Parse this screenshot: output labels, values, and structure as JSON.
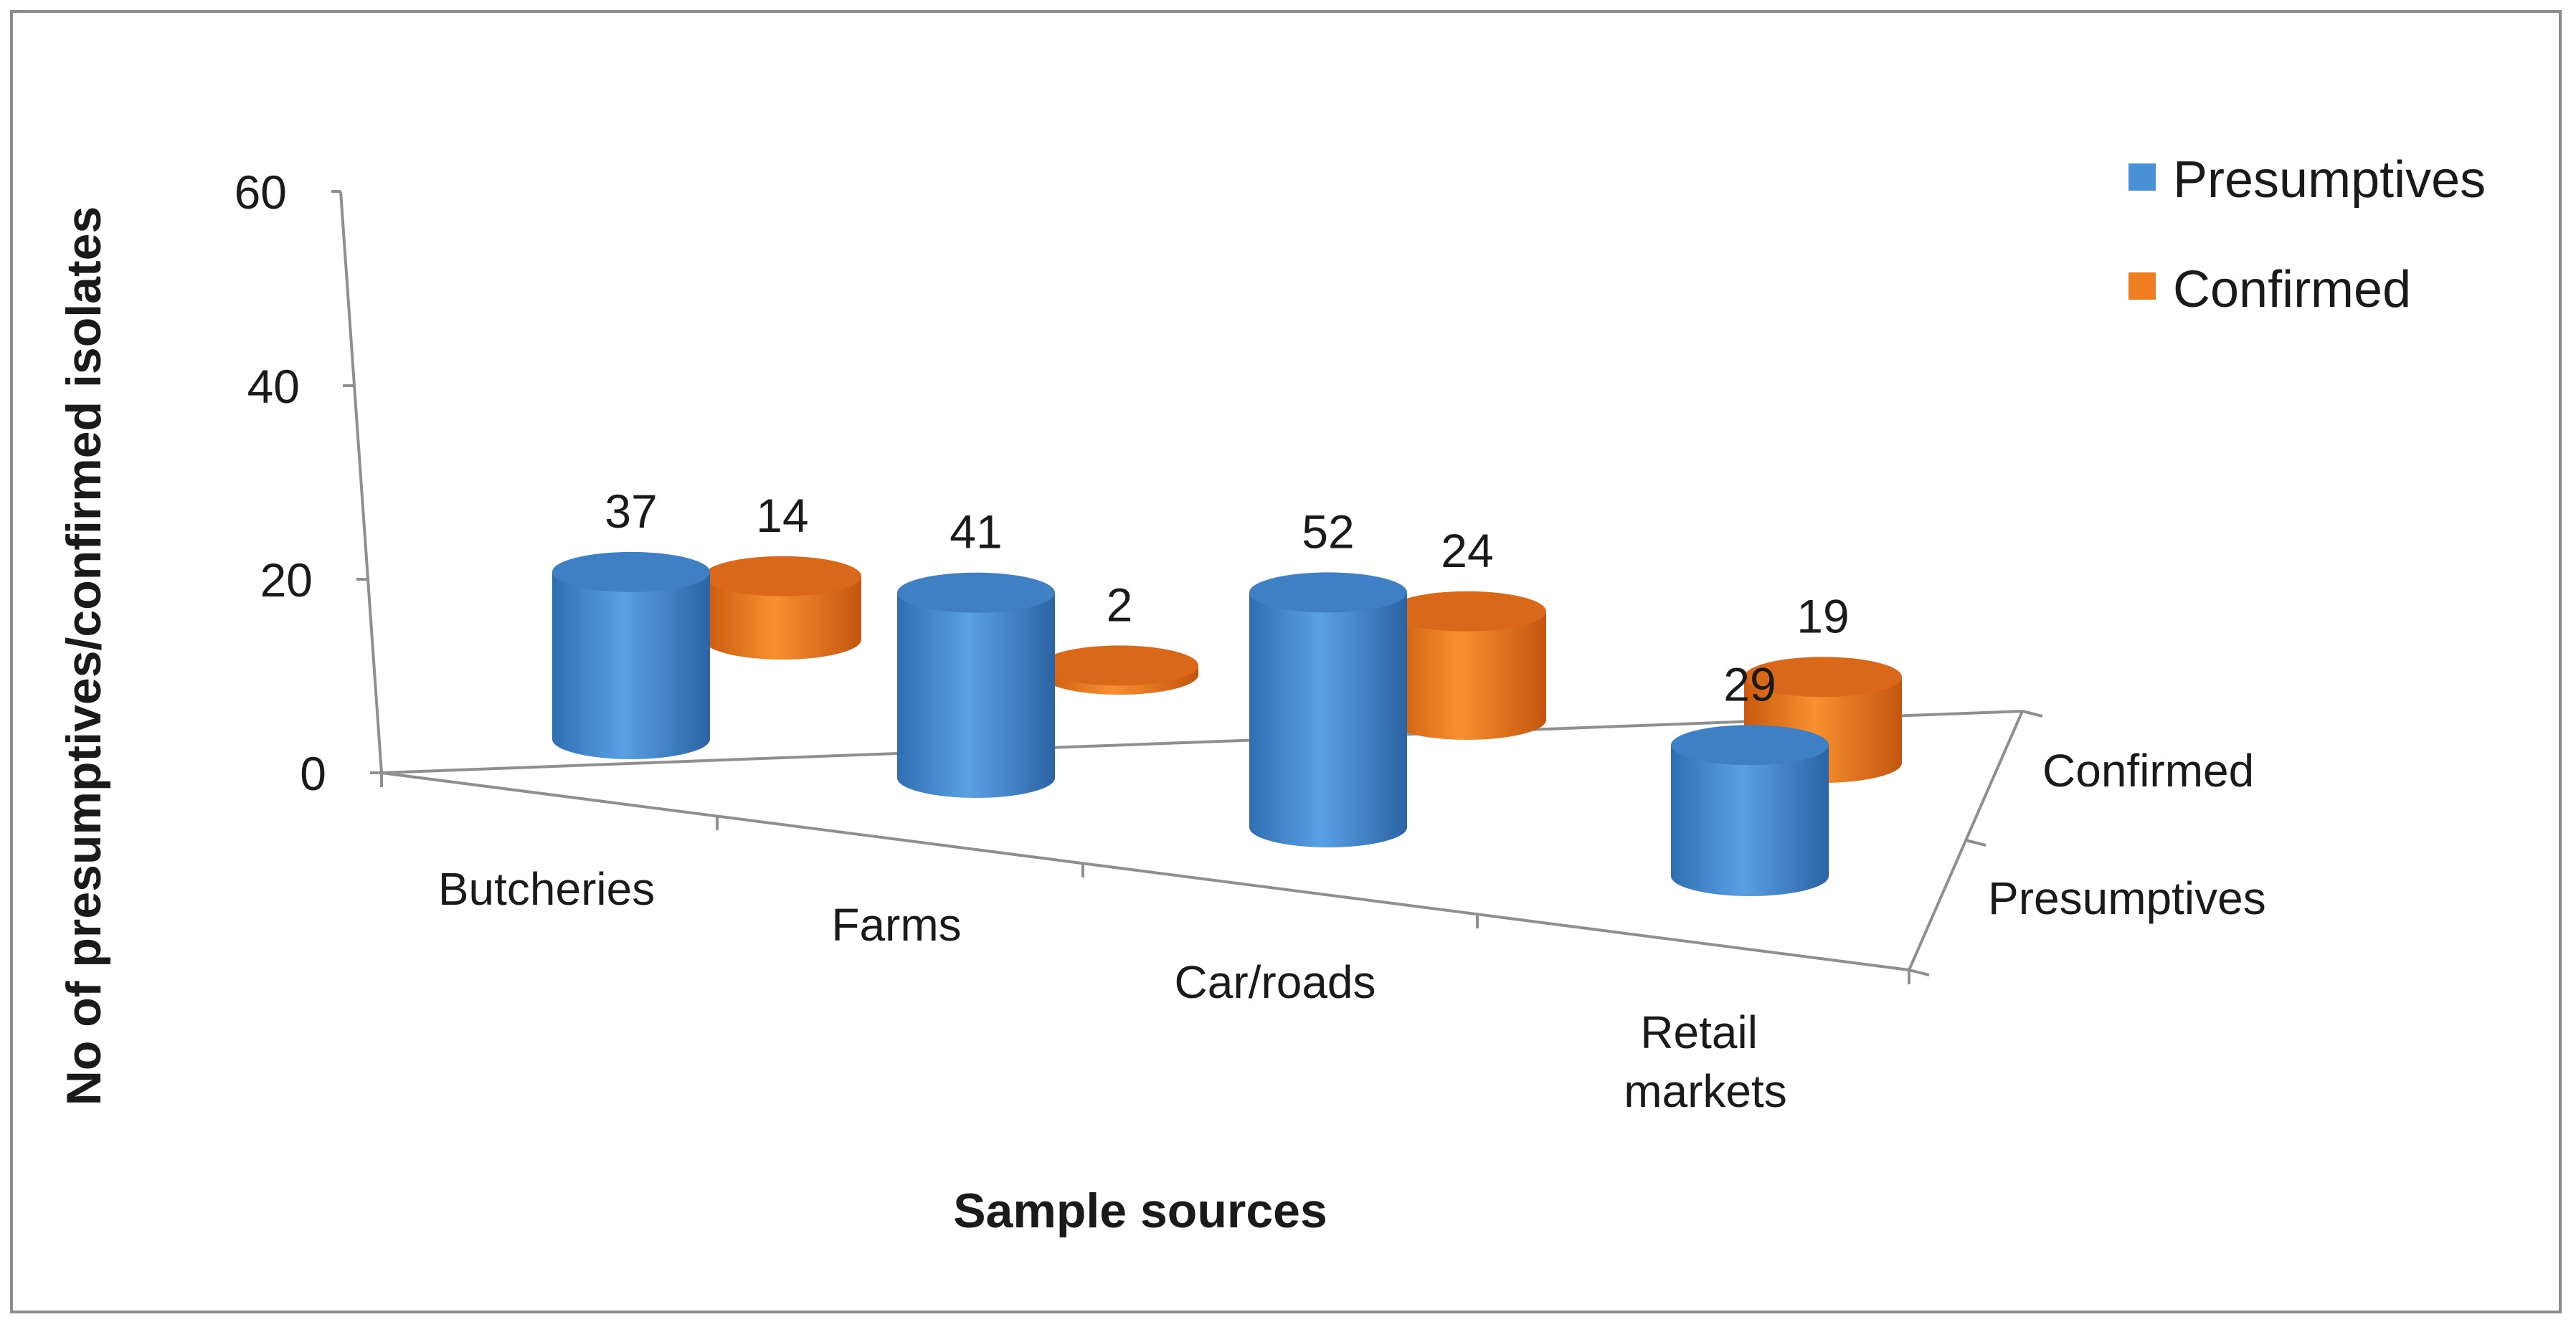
{
  "chart_data": {
    "type": "bar",
    "style": "3d-cylinder",
    "title": "",
    "xlabel": "Sample sources",
    "ylabel": "No of presumptives/confirmed isolates",
    "categories": [
      "Butcheries",
      "Farms",
      "Car/roads",
      "Retail markets"
    ],
    "category_display": [
      [
        "Butcheries"
      ],
      [
        "Farms"
      ],
      [
        "Car/roads"
      ],
      [
        "Retail",
        "markets"
      ]
    ],
    "series": [
      {
        "name": "Presumptives",
        "values": [
          37,
          41,
          52,
          29
        ],
        "color": "#4a90d6"
      },
      {
        "name": "Confirmed",
        "values": [
          14,
          2,
          24,
          19
        ],
        "color": "#ef7d22"
      }
    ],
    "depth_axis_labels": [
      "Confirmed",
      "Presumptives"
    ],
    "y_ticks": [
      0,
      20,
      40,
      60
    ],
    "ylim": [
      0,
      60
    ],
    "legend_position": "top-right",
    "grid": false
  }
}
